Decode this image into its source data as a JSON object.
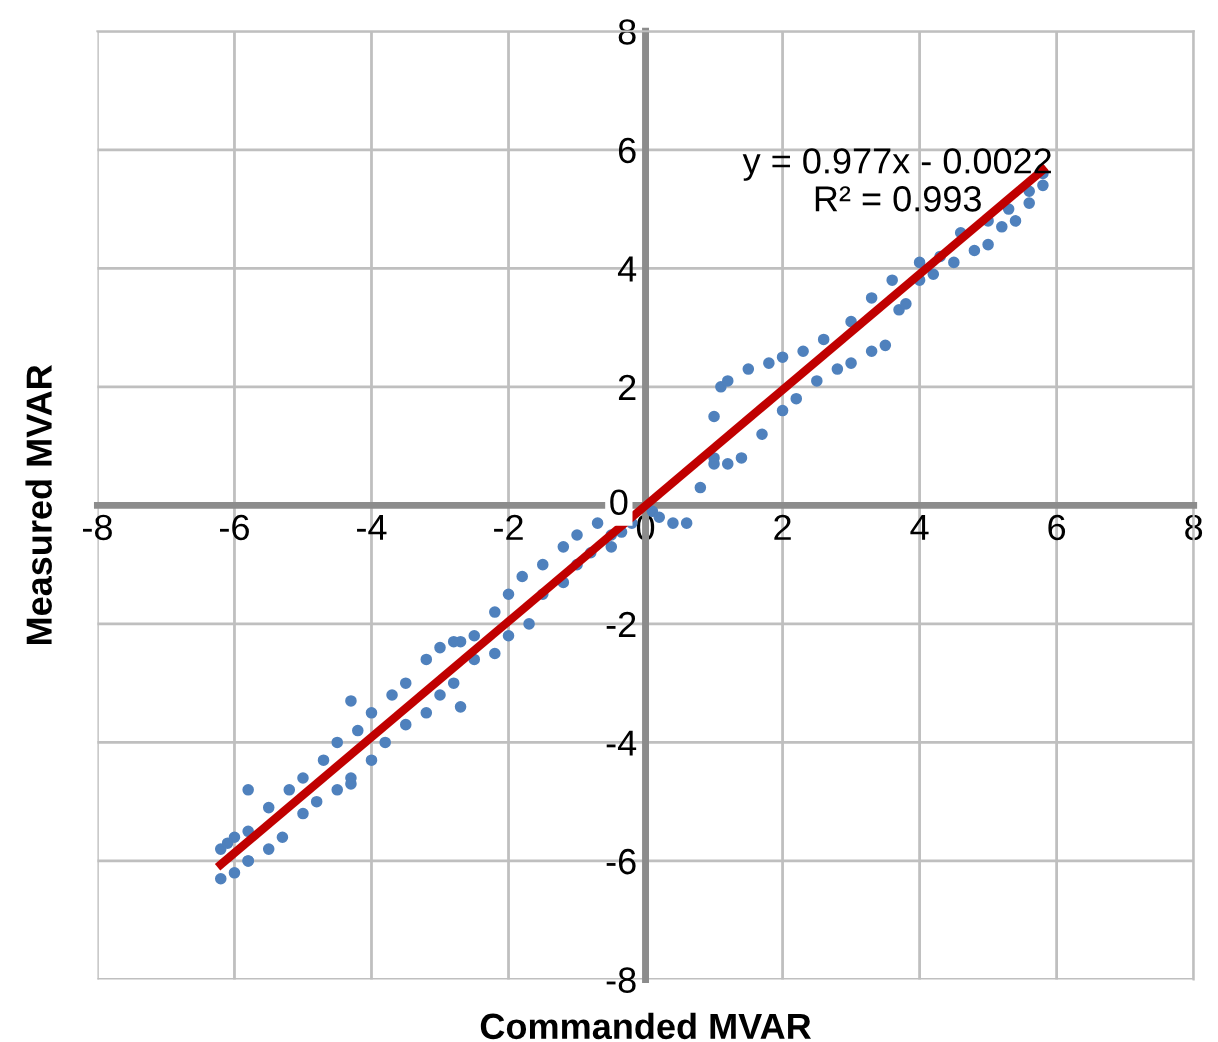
{
  "chart_data": {
    "type": "scatter",
    "xlabel": "Commanded MVAR",
    "ylabel": "Measured MVAR",
    "xlim": [
      -8,
      8
    ],
    "ylim": [
      -8,
      8
    ],
    "xticks": [
      -8,
      -6,
      -4,
      -2,
      0,
      2,
      4,
      6,
      8
    ],
    "yticks": [
      -8,
      -6,
      -4,
      -2,
      0,
      2,
      4,
      6,
      8
    ],
    "grid": true,
    "legend": false,
    "marker": "circle",
    "annotations": [
      "y = 0.977x - 0.0022",
      "R² = 0.993"
    ],
    "series": [
      {
        "color": "#4f81bd",
        "x": [
          -6.2,
          -6.1,
          -6.0,
          -5.8,
          -5.5,
          -5.2,
          -5.0,
          -4.7,
          -4.5,
          -4.2,
          -4.0,
          -3.7,
          -3.5,
          -3.2,
          -3.0,
          -2.8,
          -2.5,
          -2.2,
          -2.0,
          -1.8,
          -1.5,
          -1.2,
          -1.0,
          -0.7,
          -0.5,
          -0.35,
          -6.2,
          -6.0,
          -5.8,
          -5.5,
          -5.3,
          -5.0,
          -4.8,
          -4.5,
          -4.3,
          -4.0,
          -3.8,
          -3.5,
          -3.2,
          -3.0,
          -2.8,
          -2.5,
          -2.2,
          -2.0,
          -1.7,
          -1.5,
          -1.2,
          -1.0,
          -0.8,
          -0.5,
          -0.2,
          -5.8,
          -5.8,
          -4.3,
          -4.3,
          -2.7,
          -2.7,
          0.1,
          0.2,
          0.4,
          0.6,
          0.8,
          1.0,
          1.0,
          1.1,
          1.2,
          1.5,
          1.8,
          2.0,
          2.3,
          2.6,
          3.0,
          3.3,
          3.6,
          4.0,
          4.3,
          4.6,
          5.0,
          5.3,
          5.6,
          5.8,
          1.0,
          1.2,
          1.4,
          1.7,
          2.0,
          2.2,
          2.5,
          2.8,
          3.0,
          3.3,
          3.5,
          3.7,
          3.8,
          4.0,
          4.2,
          4.5,
          4.8,
          5.0,
          5.2,
          5.4,
          5.6,
          5.8
        ],
        "values": [
          -5.8,
          -5.7,
          -5.6,
          -5.5,
          -5.1,
          -4.8,
          -4.6,
          -4.3,
          -4.0,
          -3.8,
          -3.5,
          -3.2,
          -3.0,
          -2.6,
          -2.4,
          -2.3,
          -2.2,
          -1.8,
          -1.5,
          -1.2,
          -1.0,
          -0.7,
          -0.5,
          -0.3,
          -0.5,
          -0.45,
          -6.3,
          -6.2,
          -6.0,
          -5.8,
          -5.6,
          -5.2,
          -5.0,
          -4.8,
          -4.6,
          -4.3,
          -4.0,
          -3.7,
          -3.5,
          -3.2,
          -3.0,
          -2.6,
          -2.5,
          -2.2,
          -2.0,
          -1.5,
          -1.3,
          -1.0,
          -0.8,
          -0.7,
          -0.3,
          -4.8,
          -6.0,
          -3.3,
          -4.7,
          -2.3,
          -3.4,
          -0.1,
          -0.2,
          -0.3,
          -0.3,
          0.3,
          0.8,
          1.5,
          2.0,
          2.1,
          2.3,
          2.4,
          2.5,
          2.6,
          2.8,
          3.1,
          3.5,
          3.8,
          4.1,
          4.2,
          4.6,
          4.8,
          5.0,
          5.3,
          5.6,
          0.7,
          0.7,
          0.8,
          1.2,
          1.6,
          1.8,
          2.1,
          2.3,
          2.4,
          2.6,
          2.7,
          3.3,
          3.4,
          3.8,
          3.9,
          4.1,
          4.3,
          4.4,
          4.7,
          4.8,
          5.1,
          5.4
        ]
      },
      {
        "type": "line",
        "color": "#c00000",
        "marker": "none",
        "line_style": "solid",
        "x": [
          -6.2,
          5.8
        ],
        "values": [
          -6.06,
          5.66
        ]
      }
    ]
  }
}
